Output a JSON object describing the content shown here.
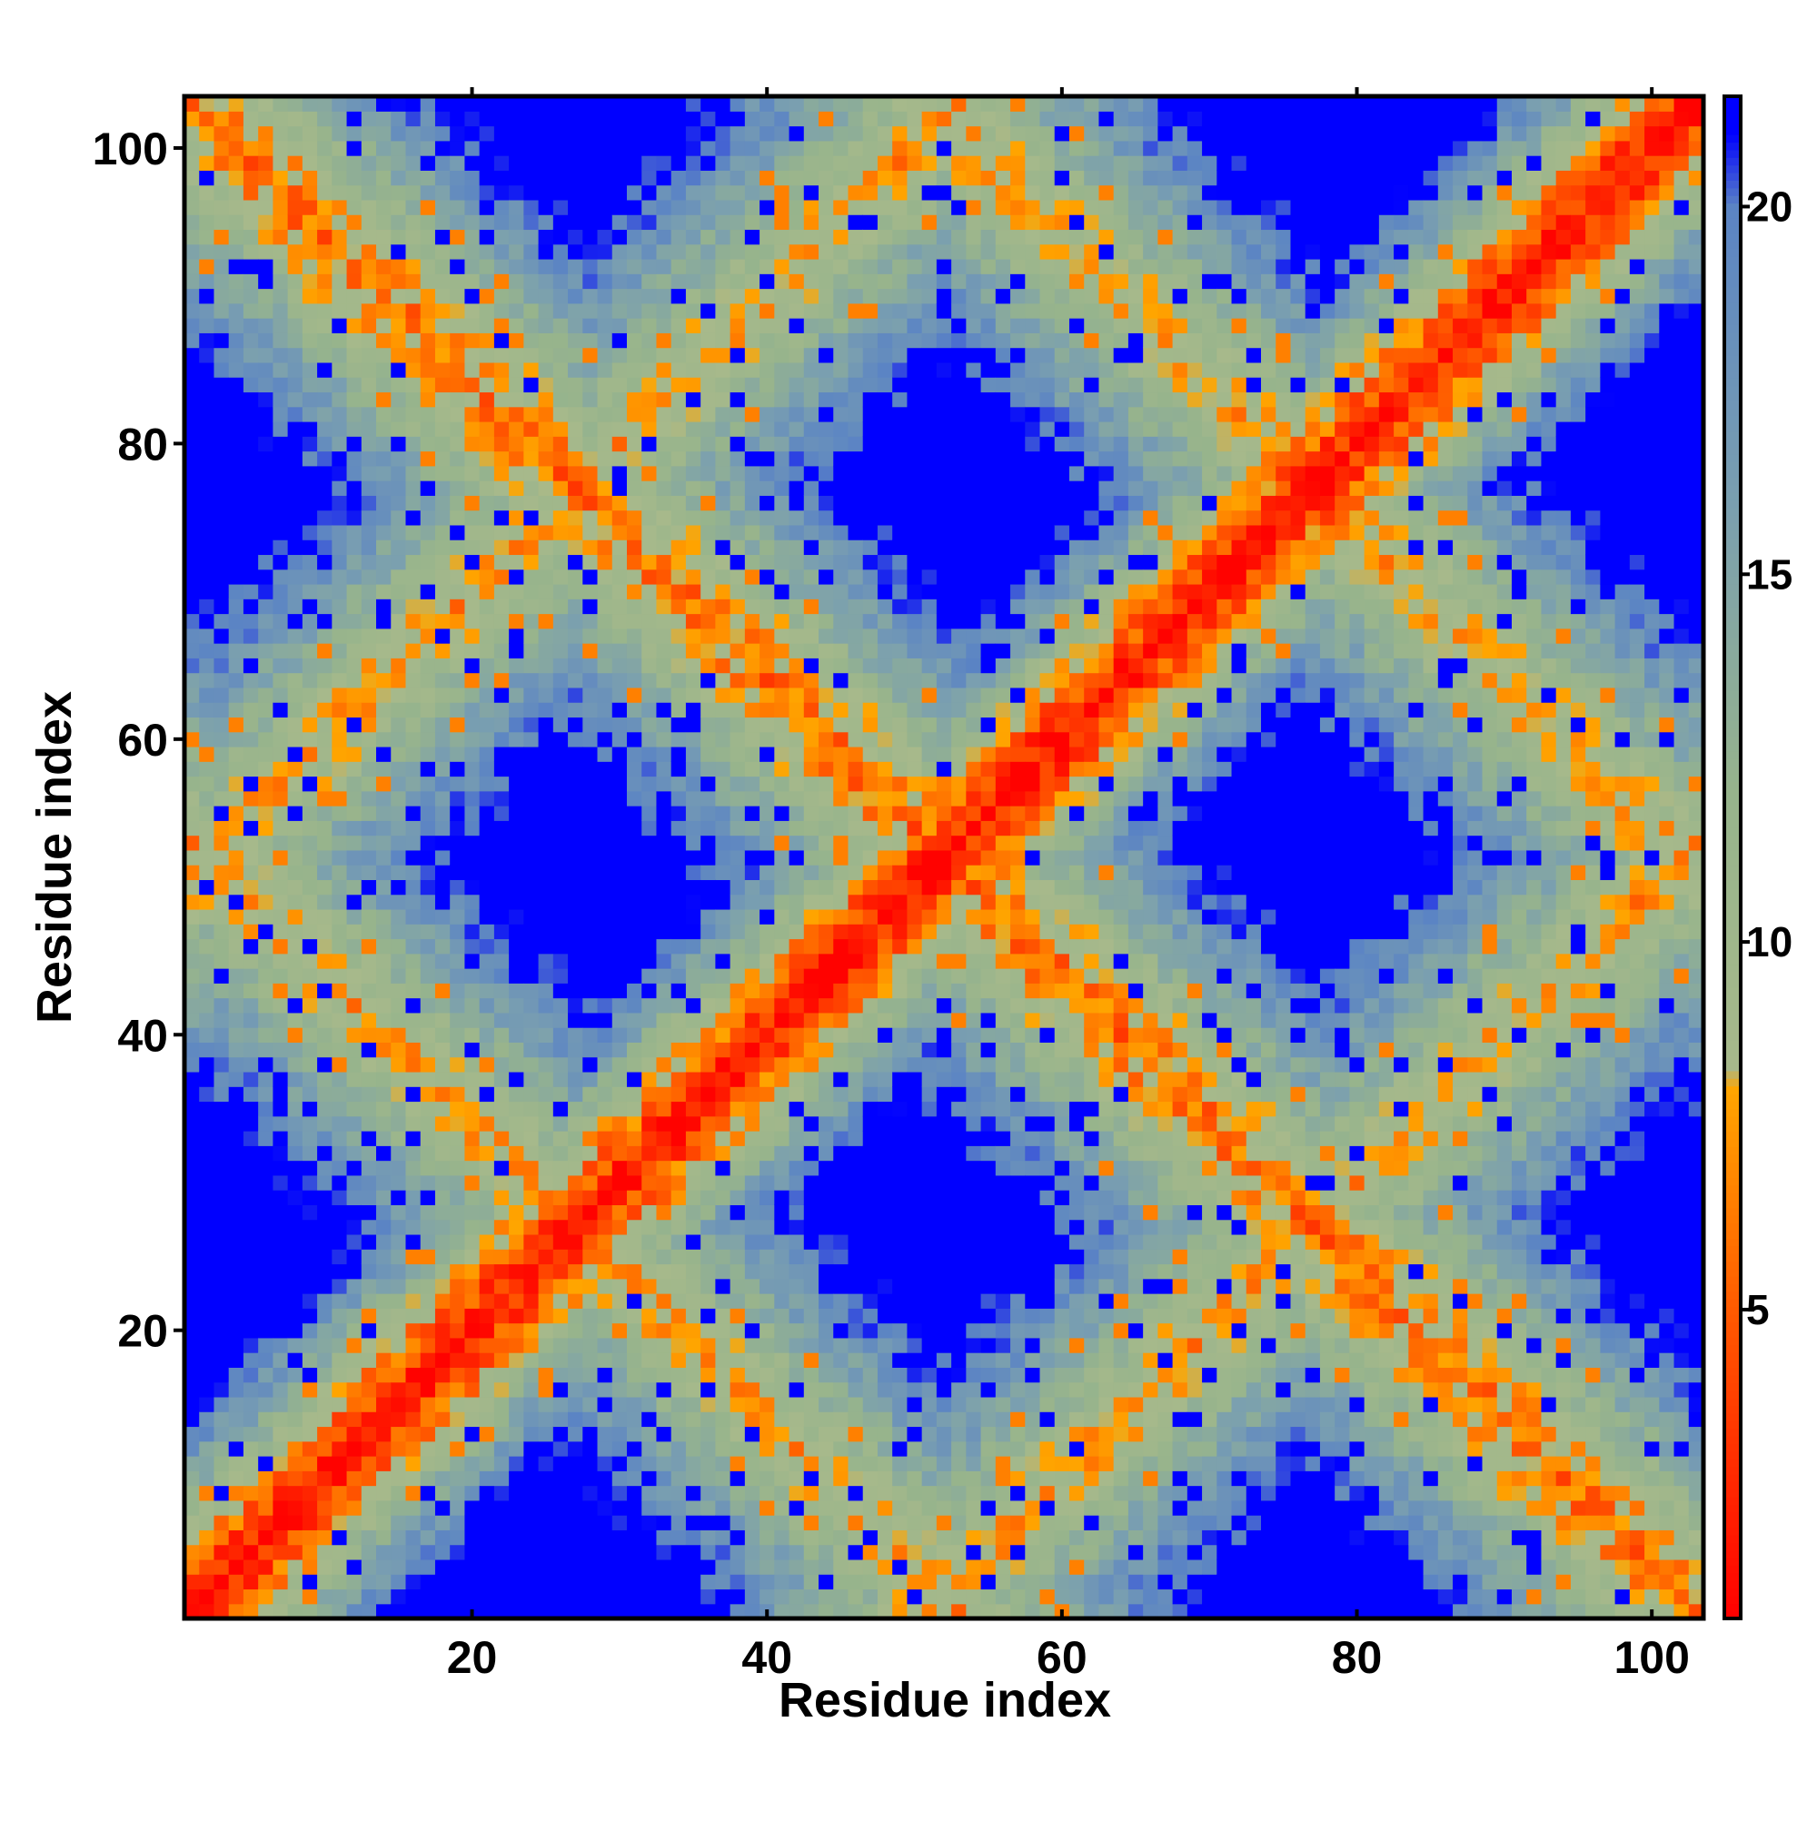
{
  "chart_data": {
    "type": "heatmap",
    "title": "",
    "xlabel": "Residue index",
    "ylabel": "Residue index",
    "n_residues": 103,
    "xlim": [
      1,
      103
    ],
    "ylim": [
      1,
      103
    ],
    "x_ticks": [
      20,
      40,
      60,
      80,
      100
    ],
    "y_ticks": [
      20,
      40,
      60,
      80,
      100
    ],
    "x_tick_labels": [
      "20",
      "40",
      "60",
      "80",
      "100"
    ],
    "y_tick_labels": [
      "20",
      "40",
      "60",
      "80",
      "100"
    ],
    "colorbar": {
      "min": 0.8,
      "max": 21.5,
      "ticks": [
        5,
        10,
        15,
        20
      ],
      "tick_labels": [
        "5",
        "10",
        "15",
        "20"
      ],
      "stops": [
        {
          "value": 0.8,
          "color": "#ff0000"
        },
        {
          "value": 5.0,
          "color": "#ff5a00"
        },
        {
          "value": 8.0,
          "color": "#ffa500"
        },
        {
          "value": 8.3,
          "color": "#a7b98b"
        },
        {
          "value": 12.0,
          "color": "#97b48c"
        },
        {
          "value": 16.0,
          "color": "#7a9fb0"
        },
        {
          "value": 20.0,
          "color": "#5b84c4"
        },
        {
          "value": 21.0,
          "color": "#0000ff"
        }
      ]
    },
    "value_description": "Pairwise residue distance map (symmetric); cells beyond cutoff shown in blue",
    "secondary_structure_bands": [
      {
        "direction": "anti",
        "sum": 104,
        "from": 1,
        "to": 103,
        "strength": 0.7
      },
      {
        "direction": "parallel",
        "offset": 0,
        "from": 1,
        "to": 103,
        "strength": 1.0
      }
    ]
  }
}
